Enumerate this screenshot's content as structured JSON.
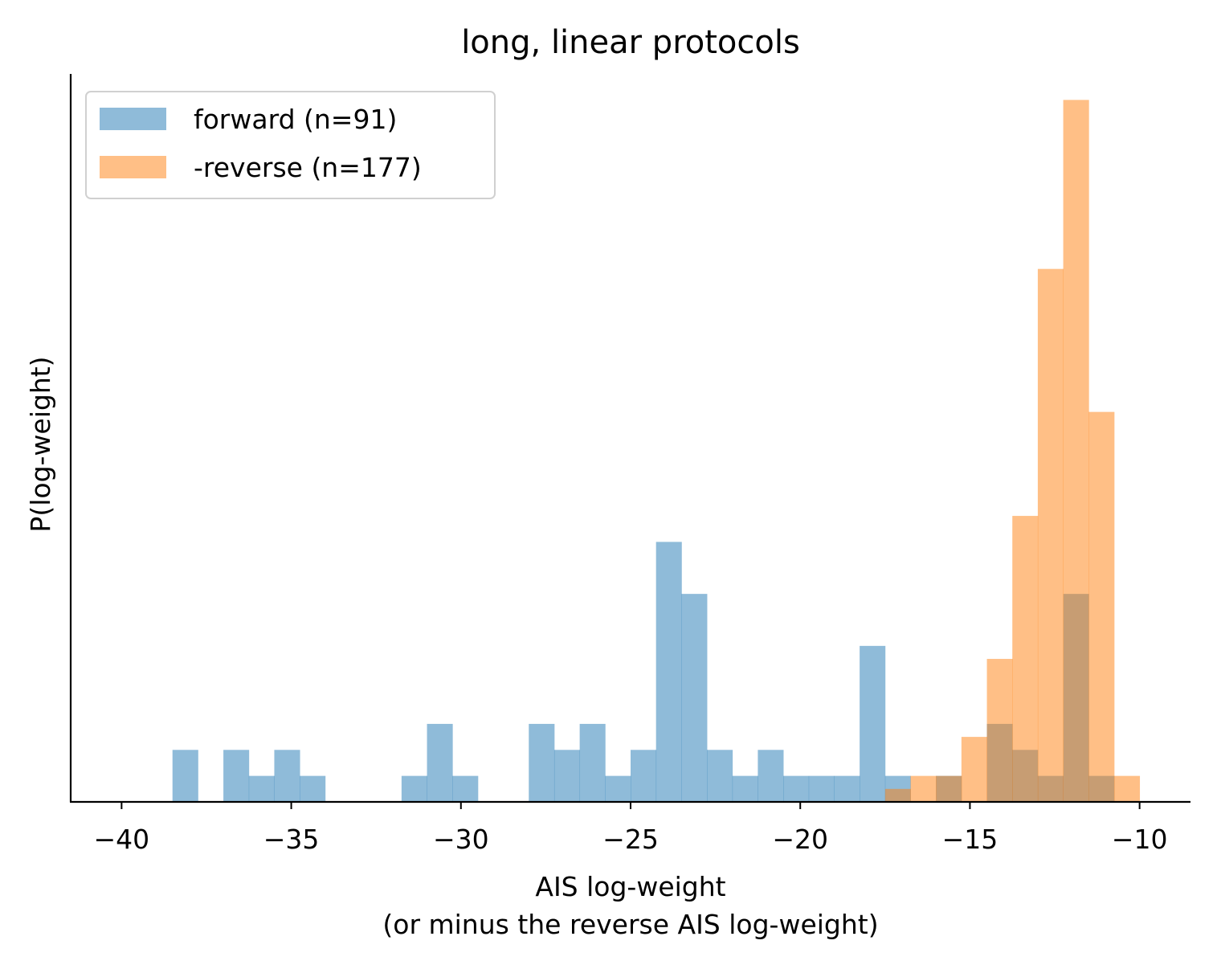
{
  "chart_data": {
    "type": "histogram",
    "title": "long, linear protocols",
    "xlabel_line1": "AIS log-weight",
    "xlabel_line2": "(or minus the reverse AIS log-weight)",
    "ylabel": "P(log-weight)",
    "xlim": [
      -41.5,
      -8.5
    ],
    "ylim": [
      0,
      28
    ],
    "xticks": [
      -40,
      -35,
      -30,
      -25,
      -20,
      -15,
      -10
    ],
    "xtick_labels": [
      "−40",
      "−35",
      "−30",
      "−25",
      "−20",
      "−15",
      "−10"
    ],
    "grid": false,
    "legend_position": "upper-left",
    "series": [
      {
        "name": "forward (n=91)",
        "color": "#1f77b4",
        "alpha": 0.5,
        "bin_start": -38.5,
        "bin_width": 0.75,
        "counts": [
          2,
          0,
          2,
          1,
          2,
          1,
          0,
          0,
          0,
          1,
          3,
          1,
          0,
          0,
          3,
          2,
          3,
          1,
          2,
          10,
          8,
          2,
          1,
          2,
          1,
          1,
          1,
          6,
          1,
          0,
          1,
          0,
          3,
          2,
          1,
          8,
          1
        ]
      },
      {
        "name": "-reverse (n=177)",
        "color": "#ff7f0e",
        "alpha": 0.5,
        "bin_start": -17.5,
        "bin_width": 0.75,
        "counts": [
          0.5,
          1,
          1,
          2.5,
          5.5,
          11,
          20.5,
          27,
          15,
          1
        ]
      }
    ]
  }
}
